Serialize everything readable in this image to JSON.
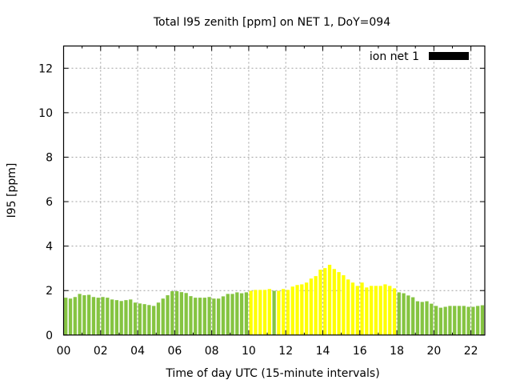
{
  "chart_data": {
    "type": "bar",
    "title": "Total I95 zenith [ppm] on NET 1, DoY=094",
    "xlabel": "Time of day UTC (15-minute intervals)",
    "ylabel": "I95 [ppm]",
    "xlim": [
      0,
      22.75
    ],
    "ylim": [
      0,
      13
    ],
    "x_ticks": [
      "00",
      "02",
      "04",
      "06",
      "08",
      "10",
      "12",
      "14",
      "16",
      "18",
      "20",
      "22"
    ],
    "x_tick_values": [
      0,
      2,
      4,
      6,
      8,
      10,
      12,
      14,
      16,
      18,
      20,
      22
    ],
    "y_ticks": [
      "0",
      "2",
      "4",
      "6",
      "8",
      "10",
      "12"
    ],
    "y_tick_values": [
      0,
      2,
      4,
      6,
      8,
      10,
      12
    ],
    "grid": true,
    "legend": {
      "label": "ion net 1",
      "color": "#000000",
      "placement": "top-right"
    },
    "bar_interval_hours": 0.25,
    "colors": {
      "normal": "#85c441",
      "highlight": "#ffff00"
    },
    "values": [
      1.68,
      1.64,
      1.71,
      1.85,
      1.79,
      1.81,
      1.71,
      1.68,
      1.71,
      1.68,
      1.6,
      1.57,
      1.53,
      1.57,
      1.6,
      1.46,
      1.42,
      1.39,
      1.35,
      1.31,
      1.46,
      1.64,
      1.79,
      1.97,
      1.97,
      1.93,
      1.89,
      1.75,
      1.68,
      1.68,
      1.68,
      1.71,
      1.64,
      1.64,
      1.74,
      1.85,
      1.85,
      1.92,
      1.88,
      1.92,
      1.99,
      2.03,
      2.03,
      2.03,
      2.07,
      1.99,
      1.99,
      2.07,
      2.03,
      2.18,
      2.25,
      2.28,
      2.36,
      2.54,
      2.65,
      2.94,
      3.01,
      3.16,
      2.97,
      2.83,
      2.69,
      2.5,
      2.36,
      2.21,
      2.36,
      2.14,
      2.21,
      2.21,
      2.21,
      2.28,
      2.21,
      2.1,
      1.92,
      1.88,
      1.78,
      1.7,
      1.52,
      1.49,
      1.52,
      1.41,
      1.31,
      1.23,
      1.27,
      1.31,
      1.31,
      1.31,
      1.31,
      1.27,
      1.27,
      1.31,
      1.34
    ],
    "highlight": [
      0,
      0,
      0,
      0,
      0,
      0,
      0,
      0,
      0,
      0,
      0,
      0,
      0,
      0,
      0,
      0,
      0,
      0,
      0,
      0,
      0,
      0,
      0,
      0,
      0,
      0,
      0,
      0,
      0,
      0,
      0,
      0,
      0,
      0,
      0,
      0,
      0,
      0,
      0,
      0,
      1,
      1,
      1,
      1,
      1,
      0,
      1,
      1,
      1,
      1,
      1,
      1,
      1,
      1,
      1,
      1,
      1,
      1,
      1,
      1,
      1,
      1,
      1,
      1,
      1,
      1,
      1,
      1,
      1,
      1,
      1,
      1,
      0,
      0,
      0,
      0,
      0,
      0,
      0,
      0,
      0,
      0,
      0,
      0,
      0,
      0,
      0,
      0,
      0,
      0,
      0
    ]
  }
}
